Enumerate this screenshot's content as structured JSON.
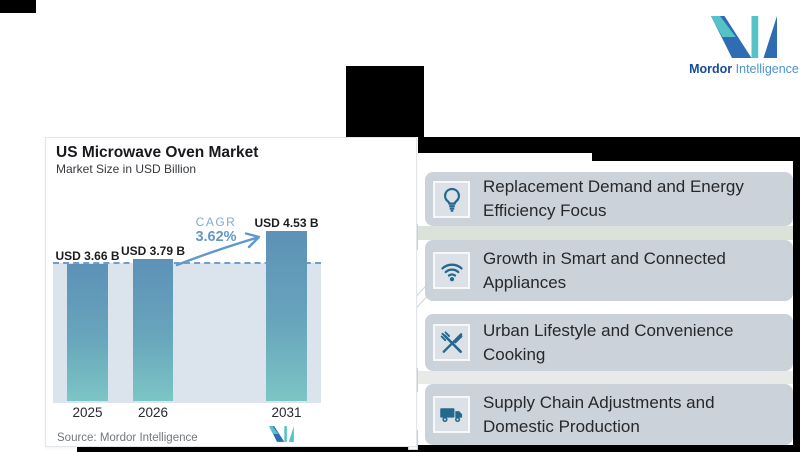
{
  "brand": {
    "name_bold": "Mordor",
    "name_light": "Intelligence",
    "color_dark": "#2e6db4",
    "color_teal": "#54c2c6"
  },
  "chart": {
    "title": "US Microwave Oven Market",
    "subtitle": "Market Size in USD Billion",
    "source": "Source: Mordor Intelligence",
    "cagr_label": "CAGR",
    "cagr_value": "3.62%"
  },
  "chart_data": {
    "type": "bar",
    "title": "US Microwave Oven Market",
    "subtitle": "Market Size in USD Billion",
    "categories": [
      "2025",
      "2026",
      "2031"
    ],
    "values": [
      3.66,
      3.79,
      4.53
    ],
    "bar_labels": [
      "USD 3.66 B",
      "USD 3.79 B",
      "USD 4.53 B"
    ],
    "cagr": "3.62%",
    "baseline_value": 3.79,
    "ylabel": "USD Billion",
    "ylim": [
      0,
      4.9
    ],
    "grid": false,
    "bar_color_top": "#5d91b7",
    "bar_color_bottom": "#7cc5c5",
    "plot_background": "#dbe4ec",
    "baseline_color": "#6f9fca"
  },
  "drivers": [
    {
      "icon": "lightbulb-icon",
      "text": "Replacement Demand and Energy Efficiency Focus"
    },
    {
      "icon": "wifi-icon",
      "text": "Growth in Smart and Connected Appliances"
    },
    {
      "icon": "utensils-icon",
      "text": "Urban Lifestyle and Convenience Cooking"
    },
    {
      "icon": "truck-icon",
      "text": "Supply Chain Adjustments and Domestic Production"
    }
  ],
  "icon_color": "#24688f"
}
